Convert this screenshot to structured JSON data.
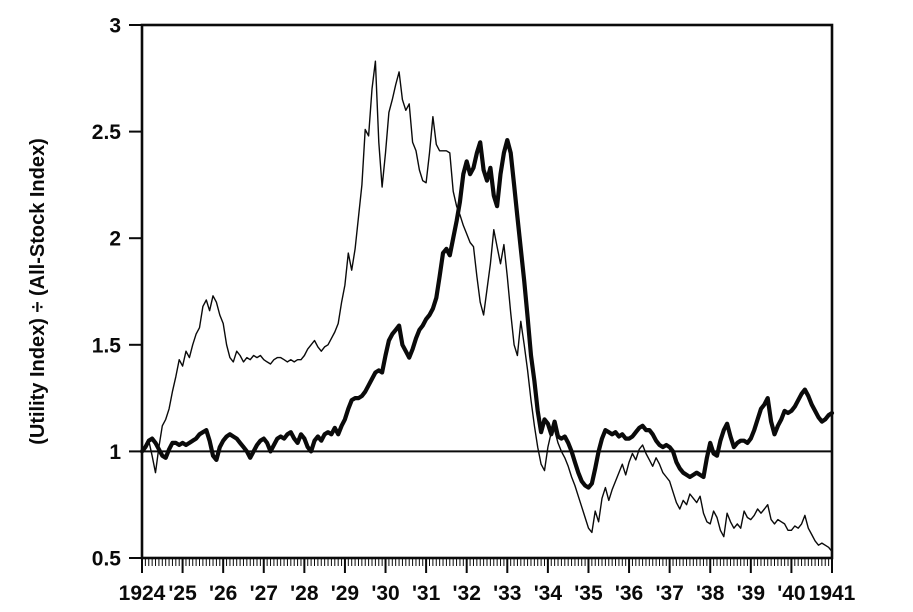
{
  "page": {
    "background": "#ffffff",
    "ink_color": "#0a0a0a"
  },
  "chart_data": {
    "type": "line",
    "title": "",
    "xlabel": "",
    "ylabel": "(Utility Index) ÷ (All-Stock Index)",
    "x_start": 1924,
    "x_end": 1941,
    "points_per_year": 12,
    "ylim": [
      0.5,
      3
    ],
    "yticks": [
      3,
      2.5,
      2,
      1.5,
      1,
      0.5
    ],
    "ytick_labels": [
      "3",
      "2.5",
      "2",
      "1.5",
      "1",
      "0.5"
    ],
    "xtick_labels": [
      "1924",
      "'25",
      "'26",
      "'27",
      "'28",
      "'29",
      "'30",
      "'31",
      "'32",
      "'33",
      "'34",
      "'35",
      "'36",
      "'37",
      "'38",
      "'39",
      "'40",
      "1941"
    ],
    "minor_xticks_per_year": 12,
    "reference_line_y": 1,
    "grid": false,
    "legend": "none",
    "line_color": "#0a0a0a",
    "series": [
      {
        "name": "thin line (utility-to-all-stock ratio, index A)",
        "stroke_width": 1.4,
        "values": [
          1.0,
          1.03,
          1.05,
          0.98,
          0.9,
          1.02,
          1.12,
          1.15,
          1.2,
          1.28,
          1.35,
          1.43,
          1.4,
          1.47,
          1.44,
          1.5,
          1.55,
          1.58,
          1.68,
          1.71,
          1.66,
          1.73,
          1.7,
          1.64,
          1.6,
          1.5,
          1.44,
          1.42,
          1.47,
          1.45,
          1.42,
          1.44,
          1.43,
          1.45,
          1.44,
          1.45,
          1.43,
          1.42,
          1.41,
          1.43,
          1.44,
          1.44,
          1.43,
          1.42,
          1.43,
          1.42,
          1.43,
          1.43,
          1.45,
          1.48,
          1.5,
          1.52,
          1.49,
          1.47,
          1.49,
          1.5,
          1.53,
          1.56,
          1.6,
          1.7,
          1.78,
          1.93,
          1.85,
          1.95,
          2.1,
          2.25,
          2.51,
          2.48,
          2.7,
          2.83,
          2.45,
          2.24,
          2.4,
          2.59,
          2.65,
          2.72,
          2.78,
          2.65,
          2.6,
          2.63,
          2.45,
          2.41,
          2.32,
          2.27,
          2.26,
          2.4,
          2.57,
          2.44,
          2.41,
          2.41,
          2.41,
          2.4,
          2.22,
          2.15,
          2.11,
          2.06,
          2.02,
          1.98,
          1.96,
          1.82,
          1.7,
          1.64,
          1.76,
          1.88,
          2.04,
          1.96,
          1.88,
          1.97,
          1.82,
          1.65,
          1.5,
          1.45,
          1.61,
          1.5,
          1.38,
          1.24,
          1.12,
          1.02,
          0.94,
          0.91,
          1.02,
          1.09,
          1.1,
          1.04,
          1.0,
          0.97,
          0.93,
          0.88,
          0.84,
          0.79,
          0.74,
          0.69,
          0.64,
          0.62,
          0.72,
          0.67,
          0.78,
          0.83,
          0.77,
          0.82,
          0.86,
          0.9,
          0.94,
          0.89,
          0.95,
          0.99,
          0.96,
          1.01,
          1.03,
          0.99,
          0.96,
          0.93,
          0.97,
          0.94,
          0.9,
          0.88,
          0.86,
          0.81,
          0.76,
          0.73,
          0.77,
          0.75,
          0.8,
          0.78,
          0.76,
          0.79,
          0.71,
          0.67,
          0.66,
          0.72,
          0.69,
          0.63,
          0.6,
          0.71,
          0.67,
          0.64,
          0.66,
          0.64,
          0.72,
          0.69,
          0.68,
          0.7,
          0.73,
          0.71,
          0.73,
          0.75,
          0.68,
          0.66,
          0.68,
          0.67,
          0.66,
          0.63,
          0.63,
          0.65,
          0.64,
          0.66,
          0.7,
          0.64,
          0.61,
          0.58,
          0.56,
          0.57,
          0.56,
          0.55,
          0.53
        ]
      },
      {
        "name": "thick line (utility-to-all-stock ratio, index B)",
        "stroke_width": 4.2,
        "values": [
          1.0,
          1.02,
          1.05,
          1.06,
          1.04,
          1.01,
          0.98,
          0.97,
          1.01,
          1.04,
          1.04,
          1.03,
          1.04,
          1.03,
          1.04,
          1.05,
          1.06,
          1.08,
          1.09,
          1.1,
          1.05,
          0.98,
          0.96,
          1.02,
          1.05,
          1.07,
          1.08,
          1.07,
          1.06,
          1.04,
          1.02,
          1.0,
          0.97,
          1.0,
          1.03,
          1.05,
          1.06,
          1.04,
          1.0,
          1.03,
          1.06,
          1.07,
          1.06,
          1.08,
          1.09,
          1.06,
          1.04,
          1.08,
          1.06,
          1.02,
          1.0,
          1.05,
          1.07,
          1.05,
          1.08,
          1.09,
          1.08,
          1.11,
          1.08,
          1.12,
          1.15,
          1.2,
          1.24,
          1.25,
          1.25,
          1.26,
          1.28,
          1.31,
          1.34,
          1.37,
          1.38,
          1.37,
          1.45,
          1.52,
          1.55,
          1.57,
          1.59,
          1.5,
          1.47,
          1.44,
          1.48,
          1.53,
          1.57,
          1.59,
          1.62,
          1.64,
          1.67,
          1.72,
          1.82,
          1.93,
          1.95,
          1.92,
          2.0,
          2.08,
          2.17,
          2.3,
          2.36,
          2.3,
          2.33,
          2.4,
          2.45,
          2.32,
          2.27,
          2.33,
          2.2,
          2.15,
          2.3,
          2.4,
          2.46,
          2.4,
          2.25,
          2.1,
          1.95,
          1.8,
          1.63,
          1.45,
          1.33,
          1.19,
          1.09,
          1.15,
          1.13,
          1.08,
          1.14,
          1.07,
          1.06,
          1.07,
          1.04,
          1.0,
          0.95,
          0.9,
          0.86,
          0.84,
          0.83,
          0.85,
          0.92,
          1.0,
          1.06,
          1.1,
          1.09,
          1.08,
          1.09,
          1.07,
          1.08,
          1.06,
          1.06,
          1.07,
          1.09,
          1.11,
          1.12,
          1.1,
          1.1,
          1.08,
          1.05,
          1.03,
          1.02,
          1.03,
          1.02,
          1.0,
          0.95,
          0.92,
          0.9,
          0.89,
          0.88,
          0.89,
          0.9,
          0.89,
          0.88,
          0.97,
          1.04,
          0.99,
          0.98,
          1.05,
          1.1,
          1.13,
          1.07,
          1.02,
          1.04,
          1.05,
          1.05,
          1.04,
          1.06,
          1.1,
          1.15,
          1.2,
          1.22,
          1.25,
          1.14,
          1.08,
          1.12,
          1.15,
          1.19,
          1.18,
          1.19,
          1.21,
          1.24,
          1.27,
          1.29,
          1.26,
          1.22,
          1.19,
          1.16,
          1.14,
          1.15,
          1.17,
          1.18
        ]
      }
    ]
  }
}
